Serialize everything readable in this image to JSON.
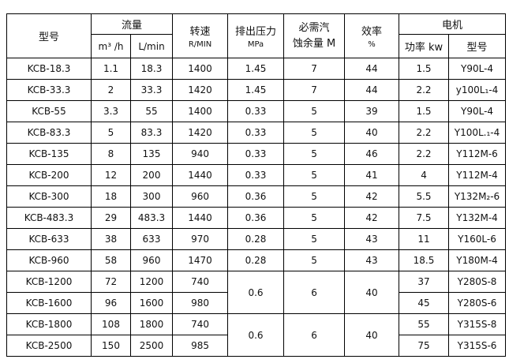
{
  "header": {
    "model": "型号",
    "flow": "流量",
    "flow_m3h": "m³ /h",
    "flow_lmin": "L/min",
    "speed": "转速",
    "speed_unit": "R/MIN",
    "pressure": "排出压力",
    "pressure_unit": "MPa",
    "npsh_line1": "必需汽",
    "npsh_line2": "蚀余量 M",
    "efficiency": "效率",
    "efficiency_unit": "%",
    "motor": "电机",
    "motor_power": "功率 kw",
    "motor_model": "型号"
  },
  "rows": [
    {
      "model": "KCB-18.3",
      "m3h": "1.1",
      "lmin": "18.3",
      "speed": "1400",
      "pressure": "1.45",
      "npsh": "7",
      "eff": "44",
      "power": "1.5",
      "motor": "Y90L-4"
    },
    {
      "model": "KCB-33.3",
      "m3h": "2",
      "lmin": "33.3",
      "speed": "1420",
      "pressure": "1.45",
      "npsh": "7",
      "eff": "44",
      "power": "2.2",
      "motor": "y100L₁-4"
    },
    {
      "model": "KCB-55",
      "m3h": "3.3",
      "lmin": "55",
      "speed": "1400",
      "pressure": "0.33",
      "npsh": "5",
      "eff": "39",
      "power": "1.5",
      "motor": "Y90L-4"
    },
    {
      "model": "KCB-83.3",
      "m3h": "5",
      "lmin": "83.3",
      "speed": "1420",
      "pressure": "0.33",
      "npsh": "5",
      "eff": "40",
      "power": "2.2",
      "motor": "Y100L.₁-4"
    },
    {
      "model": "KCB-135",
      "m3h": "8",
      "lmin": "135",
      "speed": "940",
      "pressure": "0.33",
      "npsh": "5",
      "eff": "46",
      "power": "2.2",
      "motor": "Y112M-6"
    },
    {
      "model": "KCB-200",
      "m3h": "12",
      "lmin": "200",
      "speed": "1440",
      "pressure": "0.33",
      "npsh": "5",
      "eff": "41",
      "power": "4",
      "motor": "Y112M-4"
    },
    {
      "model": "KCB-300",
      "m3h": "18",
      "lmin": "300",
      "speed": "960",
      "pressure": "0.36",
      "npsh": "5",
      "eff": "42",
      "power": "5.5",
      "motor": "Y132M₂-6"
    },
    {
      "model": "KCB-483.3",
      "m3h": "29",
      "lmin": "483.3",
      "speed": "1440",
      "pressure": "0.36",
      "npsh": "5",
      "eff": "42",
      "power": "7.5",
      "motor": "Y132M-4"
    },
    {
      "model": "KCB-633",
      "m3h": "38",
      "lmin": "633",
      "speed": "970",
      "pressure": "0.28",
      "npsh": "5",
      "eff": "43",
      "power": "11",
      "motor": "Y160L-6"
    },
    {
      "model": "KCB-960",
      "m3h": "58",
      "lmin": "960",
      "speed": "1470",
      "pressure": "0.28",
      "npsh": "5",
      "eff": "43",
      "power": "18.5",
      "motor": "Y180M-4"
    },
    {
      "model": "KCB-1200",
      "m3h": "72",
      "lmin": "1200",
      "speed": "740",
      "pressure": "0.6",
      "npsh": "6",
      "eff": "40",
      "power": "37",
      "motor": "Y280S-8"
    },
    {
      "model": "KCB-1600",
      "m3h": "96",
      "lmin": "1600",
      "speed": "980",
      "power": "45",
      "motor": "Y280S-6"
    },
    {
      "model": "KCB-1800",
      "m3h": "108",
      "lmin": "1800",
      "speed": "740",
      "pressure": "0.6",
      "npsh": "6",
      "eff": "40",
      "power": "55",
      "motor": "Y315S-8"
    },
    {
      "model": "KCB-2500",
      "m3h": "150",
      "lmin": "2500",
      "speed": "985",
      "power": "75",
      "motor": "Y315S-6"
    }
  ]
}
